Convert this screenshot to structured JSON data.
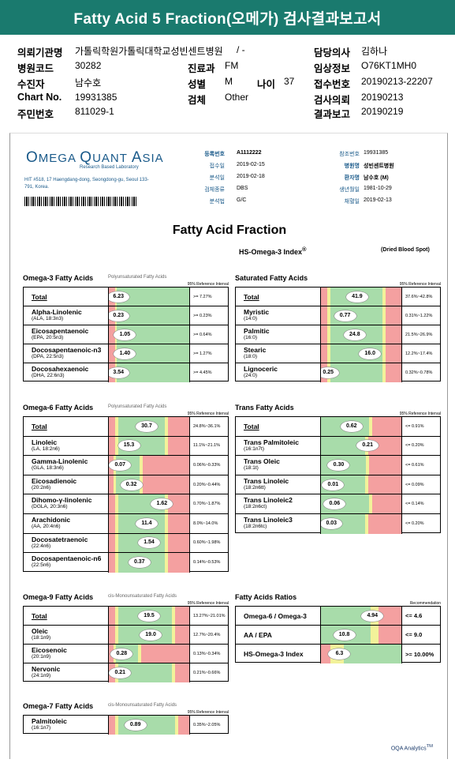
{
  "title": "Fatty Acid 5 Fraction(오메가) 검사결과보고서",
  "header": {
    "institution_label": "의뢰기관명",
    "institution": "가톨릭학원가톨릭대학교성빈센트병원",
    "hospital_code_label": "병원코드",
    "hospital_code": "30282",
    "dept_label": "진료과",
    "dept": "FM",
    "receiver_label": "수진자",
    "receiver": "남수호",
    "sex_label": "성별",
    "sex": "M",
    "age_label": "나이",
    "age": "37",
    "chart_label": "Chart No.",
    "chart": "19931385",
    "test_label": "검체",
    "test": "Other",
    "resident_label": "주민번호",
    "resident": "811029-1",
    "doctor_label": "담당의사",
    "doctor": "김하나",
    "clinical_label": "임상정보",
    "clinical": "O76KT1MH0",
    "accession_label": "접수번호",
    "accession": "20190213-22207",
    "request_label": "검사의뢰",
    "request": "20190213",
    "result_label": "결과보고",
    "result": "20190219"
  },
  "report": {
    "logo_a": "O",
    "logo_b": "MEGA ",
    "logo_c": "Q",
    "logo_d": "UANT ",
    "logo_e": "A",
    "logo_f": "SIA",
    "logo_sub": "Research Based Laboratory",
    "address": "HIT #518, 17 Haengdang-dong, Seongdong-gu, Seoul 133-791, Korea.",
    "meta_left": [
      {
        "label": "등록번호",
        "value": "A1112222",
        "bold": true
      },
      {
        "label": "접수일",
        "value": "2019-02-15"
      },
      {
        "label": "분석일",
        "value": "2019-02-18"
      },
      {
        "label": "검체종류",
        "value": "DBS"
      },
      {
        "label": "분석법",
        "value": "G/C"
      }
    ],
    "meta_right": [
      {
        "label": "참조번호",
        "value": "19931385"
      },
      {
        "label": "병원명",
        "value": "성빈센트병원",
        "bold": true
      },
      {
        "label": "환자명",
        "value": "남수호 (M)",
        "bold": true
      },
      {
        "label": "생년월일",
        "value": "1981-10-29"
      },
      {
        "label": "채혈일",
        "value": "2019-02-13"
      }
    ],
    "main_title": "Fatty Acid Fraction",
    "hs_title": "HS-Omega-3 Index",
    "hs_sup": "®",
    "dbs": "(Dried Blood Spot)",
    "footer": "OQA Analytics",
    "footer_sup": "TM"
  },
  "colors": {
    "red": "#f4a0a0",
    "green": "#a8dcaa",
    "yellow": "#f2f29a",
    "teal": "#1a7a6e"
  },
  "sections": {
    "omega3": {
      "title": "Omega-3 Fatty Acids",
      "subtitle": "Polyunsaturated Fatty Acids",
      "ref_header": "95% Reference Interval",
      "rows": [
        {
          "name": "Total",
          "sub": "",
          "value": "6.23",
          "ref": ">= 7.27%"
        },
        {
          "name": "Alpha-Linolenic",
          "sub": "(ALA, 18:3n3)",
          "value": "0.23",
          "ref": ">= 0.23%"
        },
        {
          "name": "Eicosapentaenoic",
          "sub": "(EPA, 20:5n3)",
          "value": "1.05",
          "ref": ">= 0.64%"
        },
        {
          "name": "Docosapentaenoic-n3",
          "sub": "(DPA, 22:5n3)",
          "value": "1.40",
          "ref": ">= 1.27%"
        },
        {
          "name": "Docosahexaenoic",
          "sub": "(DHA, 22:6n3)",
          "value": "3.54",
          "ref": ">= 4.45%"
        }
      ]
    },
    "saturated": {
      "title": "Saturated Fatty Acids",
      "subtitle": "",
      "ref_header": "95% Reference Interval",
      "rows": [
        {
          "name": "Total",
          "sub": "",
          "value": "41.9",
          "ref": "37.6%~42.8%"
        },
        {
          "name": "Myristic",
          "sub": "(14:0)",
          "value": "0.77",
          "ref": "0.31%~1.22%"
        },
        {
          "name": "Palmitic",
          "sub": "(16:0)",
          "value": "24.8",
          "ref": "21.5%~26.9%"
        },
        {
          "name": "Stearic",
          "sub": "(18:0)",
          "value": "16.0",
          "ref": "12.2%~17.4%"
        },
        {
          "name": "Lignoceric",
          "sub": "(24:0)",
          "value": "0.25",
          "ref": "0.32%~0.78%"
        }
      ]
    },
    "omega6": {
      "title": "Omega-6 Fatty Acids",
      "subtitle": "Polyunsaturated Fatty Acids",
      "ref_header": "95% Reference Interval",
      "rows": [
        {
          "name": "Total",
          "sub": "",
          "value": "30.7",
          "ref": "24.8%~36.1%"
        },
        {
          "name": "Linoleic",
          "sub": "(LA, 18:2n6)",
          "value": "15.3",
          "ref": "11.1%~21.1%"
        },
        {
          "name": "Gamma-Linolenic",
          "sub": "(GLA, 18:3n6)",
          "value": "0.07",
          "ref": "0.06%~0.33%"
        },
        {
          "name": "Eicosadienoic",
          "sub": "(20:2n6)",
          "value": "0.32",
          "ref": "0.20%~0.44%"
        },
        {
          "name": "Dihomo-γ-linolenic",
          "sub": "(DGLA, 20:3n6)",
          "value": "1.62",
          "ref": "0.70%~1.87%"
        },
        {
          "name": "Arachidonic",
          "sub": "(AA, 20:4n6)",
          "value": "11.4",
          "ref": "8.0%~14.0%"
        },
        {
          "name": "Docosatetraenoic",
          "sub": "(22:4n6)",
          "value": "1.54",
          "ref": "0.60%~1.98%"
        },
        {
          "name": "Docosapentaenoic-n6",
          "sub": "(22:5n6)",
          "value": "0.37",
          "ref": "0.14%~0.53%"
        }
      ]
    },
    "trans": {
      "title": "Trans Fatty Acids",
      "subtitle": "",
      "ref_header": "95% Reference Interval",
      "rows": [
        {
          "name": "Total",
          "sub": "",
          "value": "0.62",
          "ref": "<= 0.91%"
        },
        {
          "name": "Trans Palmitoleic",
          "sub": "(16:1n7t)",
          "value": "0.21",
          "ref": "<= 0.20%"
        },
        {
          "name": "Trans Oleic",
          "sub": "(18:1t)",
          "value": "0.30",
          "ref": "<= 0.61%"
        },
        {
          "name": "Trans Linoleic",
          "sub": "(18:2n6tt)",
          "value": "0.01",
          "ref": "<= 0.09%"
        },
        {
          "name": "Trans Linoleic2",
          "sub": "(18:2n6ct)",
          "value": "0.06",
          "ref": "<= 0.14%"
        },
        {
          "name": "Trans Linoleic3",
          "sub": "(18:2n6tc)",
          "value": "0.03",
          "ref": "<= 0.20%"
        }
      ]
    },
    "omega9": {
      "title": "Omega-9 Fatty Acids",
      "subtitle": "cis-Monounsaturated Fatty Acids",
      "ref_header": "95% Reference Interval",
      "rows": [
        {
          "name": "Total",
          "sub": "",
          "value": "19.5",
          "ref": "13.27%~21.01%"
        },
        {
          "name": "Oleic",
          "sub": "(18:1n9)",
          "value": "19.0",
          "ref": "12.7%~20.4%"
        },
        {
          "name": "Eicosenoic",
          "sub": "(20:1n9)",
          "value": "0.28",
          "ref": "0.13%~0.34%"
        },
        {
          "name": "Nervonic",
          "sub": "(24:1n9)",
          "value": "0.21",
          "ref": "0.21%~0.66%"
        }
      ]
    },
    "ratios": {
      "title": "Fatty Acids Ratios",
      "subtitle": "",
      "ref_header": "Recommendation",
      "rows": [
        {
          "name": "Omega-6 / Omega-3",
          "sub": "",
          "value": "4.94",
          "ref": "<= 4.6"
        },
        {
          "name": "AA / EPA",
          "sub": "",
          "value": "10.8",
          "ref": "<= 9.0"
        },
        {
          "name": "HS-Omega-3 Index",
          "sub": "",
          "value": "6.3",
          "ref": ">= 10.00%"
        }
      ]
    },
    "omega7": {
      "title": "Omega-7 Fatty Acids",
      "subtitle": "cis-Monounsaturated Fatty Acids",
      "ref_header": "95% Reference Interval",
      "rows": [
        {
          "name": "Palmitoleic",
          "sub": "(16:1n7)",
          "value": "0.89",
          "ref": "0.35%~2.05%"
        }
      ]
    }
  }
}
